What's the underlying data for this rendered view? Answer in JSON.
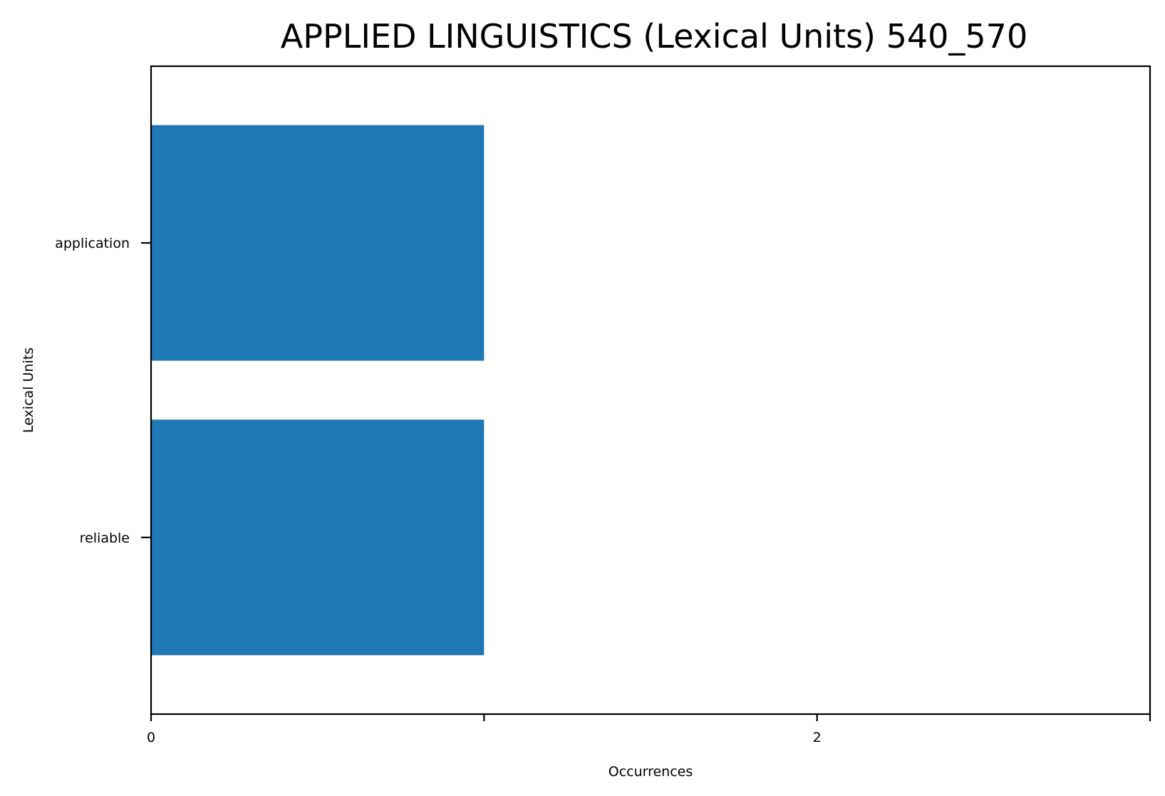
{
  "chart_data": {
    "type": "bar",
    "orientation": "horizontal",
    "title": "APPLIED LINGUISTICS (Lexical Units) 540_570",
    "xlabel": "Occurrences",
    "ylabel": "Lexical Units",
    "categories": [
      "application",
      "reliable"
    ],
    "values": [
      1,
      1
    ],
    "xlim": [
      0,
      3
    ],
    "x_ticks": [
      0,
      1,
      2,
      3
    ],
    "x_tick_labels": [
      "0",
      "",
      "2",
      ""
    ],
    "grid": false,
    "bar_color": "#1f77b4"
  }
}
